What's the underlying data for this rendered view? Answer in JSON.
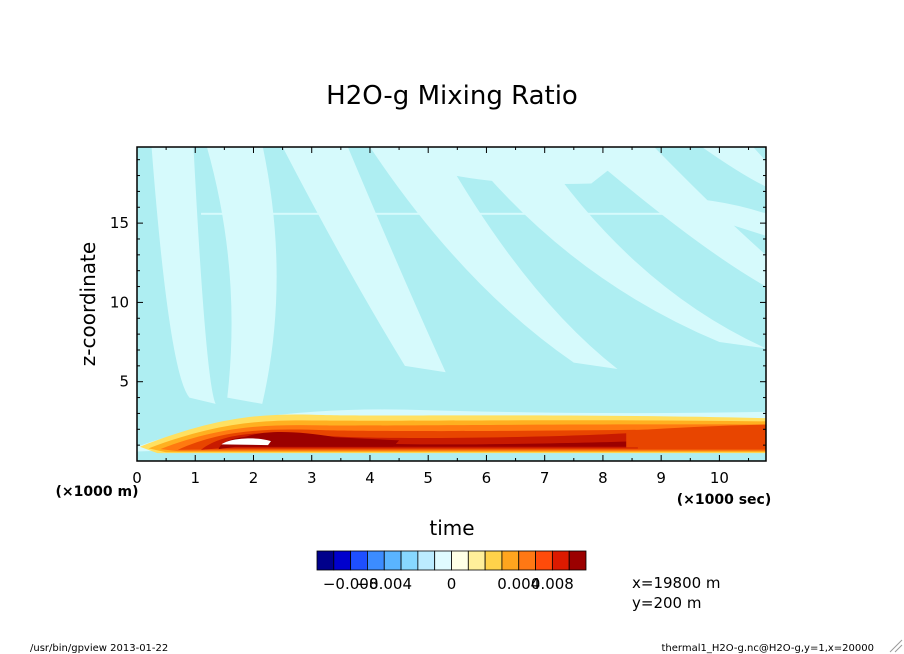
{
  "chart_data": {
    "type": "heatmap",
    "title": "H2O-g Mixing Ratio",
    "xlabel": "time",
    "ylabel": "z-coordinate",
    "x_unit_note": "(×1000 sec)",
    "y_unit_note": "(×1000 m)",
    "xlim": [
      0,
      10.8
    ],
    "ylim": [
      0,
      19.8
    ],
    "xticks": [
      "0",
      "1",
      "2",
      "3",
      "4",
      "5",
      "6",
      "7",
      "8",
      "9",
      "10"
    ],
    "yticks": [
      "5",
      "10",
      "15"
    ],
    "colorbar": {
      "colors": [
        "#00008b",
        "#0000cd",
        "#1e4fff",
        "#3c8cff",
        "#5ab4ff",
        "#87d8ff",
        "#bcecff",
        "#e0fbff",
        "#ffffe6",
        "#ffef9a",
        "#ffd24a",
        "#ffa51e",
        "#ff7814",
        "#ff4b0a",
        "#dc1a00",
        "#9b0000"
      ],
      "tick_labels": [
        "-0.008",
        "-0.004",
        "0",
        "0.004",
        "0.008"
      ]
    },
    "annotations": [
      "x=19800 m",
      "y=200 m"
    ],
    "field_description": {
      "background_bands": [
        "#aeeef2",
        "#d6fafc"
      ],
      "moist_layer": {
        "z_range": [
          0.3,
          3.0
        ],
        "peak_time": 2.0,
        "peak_level": "> 0.008",
        "levels": [
          "#ffe060",
          "#ffb020",
          "#ff7a10",
          "#e84500",
          "#c81a00",
          "#9b0000"
        ]
      }
    }
  },
  "footer": {
    "left": "/usr/bin/gpview  2013-01-22",
    "right": "thermal1_H2O-g.nc@H2O-g,y=1,x=20000"
  }
}
